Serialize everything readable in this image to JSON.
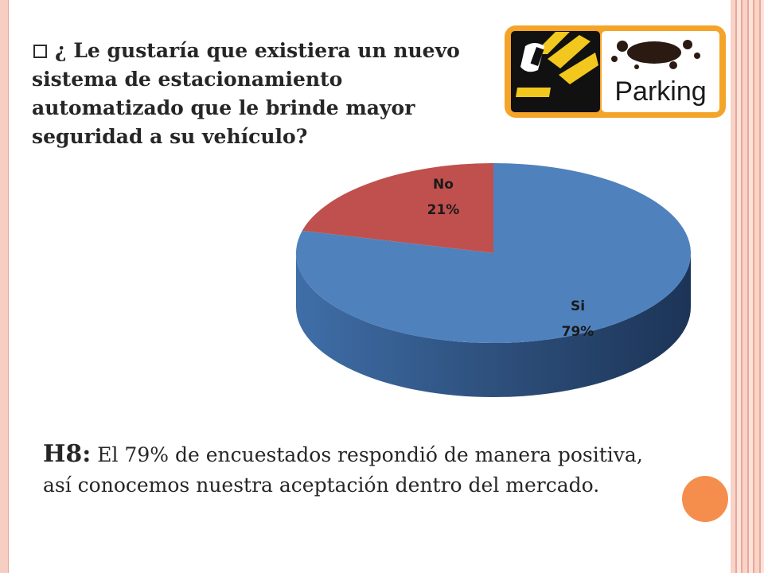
{
  "question": {
    "text": "¿ Le gustaría que existiera un nuevo sistema de estacionamiento automatizado que le brinde mayor seguridad a su vehículo?",
    "bullet_icon": "hollow-square-bullet"
  },
  "logo": {
    "text": "Parking",
    "icon": "parking-barrier-logo"
  },
  "chart_data": {
    "type": "pie",
    "style": "3d",
    "categories": [
      "No",
      "Si"
    ],
    "values": [
      21,
      79
    ],
    "data_labels": [
      {
        "name": "No",
        "value": "21%"
      },
      {
        "name": "Si",
        "value": "79%"
      }
    ],
    "colors": [
      "#c0504d",
      "#4f81bd"
    ],
    "legend": "none"
  },
  "finding": {
    "code": "H8:",
    "text": " El 79% de encuestados respondió de manera positiva, así conocemos nuestra aceptación dentro del mercado."
  },
  "theme": {
    "accent_dot": "#f58e4d",
    "border": "#f6cdc1"
  }
}
